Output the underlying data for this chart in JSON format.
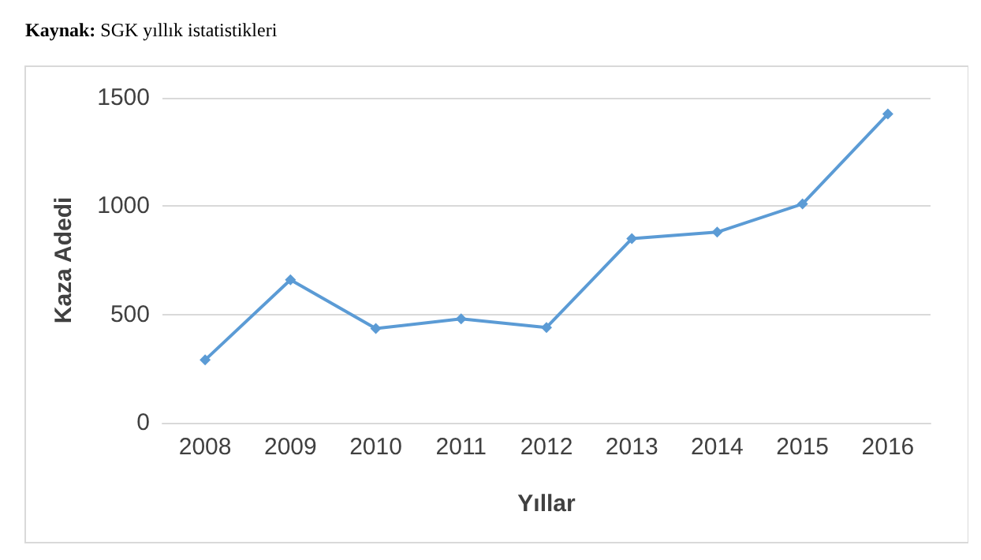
{
  "chart_data": {
    "type": "line",
    "annotations": [
      "Kaynak: SGK yıllık istatistikleri"
    ],
    "xlabel": "Yıllar",
    "ylabel": "Kaza Adedi",
    "categories": [
      "2008",
      "2009",
      "2010",
      "2011",
      "2012",
      "2013",
      "2014",
      "2015",
      "2016"
    ],
    "series": [
      {
        "color": "#5b9bd5",
        "values": [
          290,
          660,
          435,
          480,
          440,
          850,
          880,
          1010,
          1425
        ]
      }
    ],
    "ylim": [
      0,
      1500
    ],
    "yticks": [
      0,
      500,
      1000,
      1500
    ],
    "grid": "y",
    "marker": "diamond"
  }
}
